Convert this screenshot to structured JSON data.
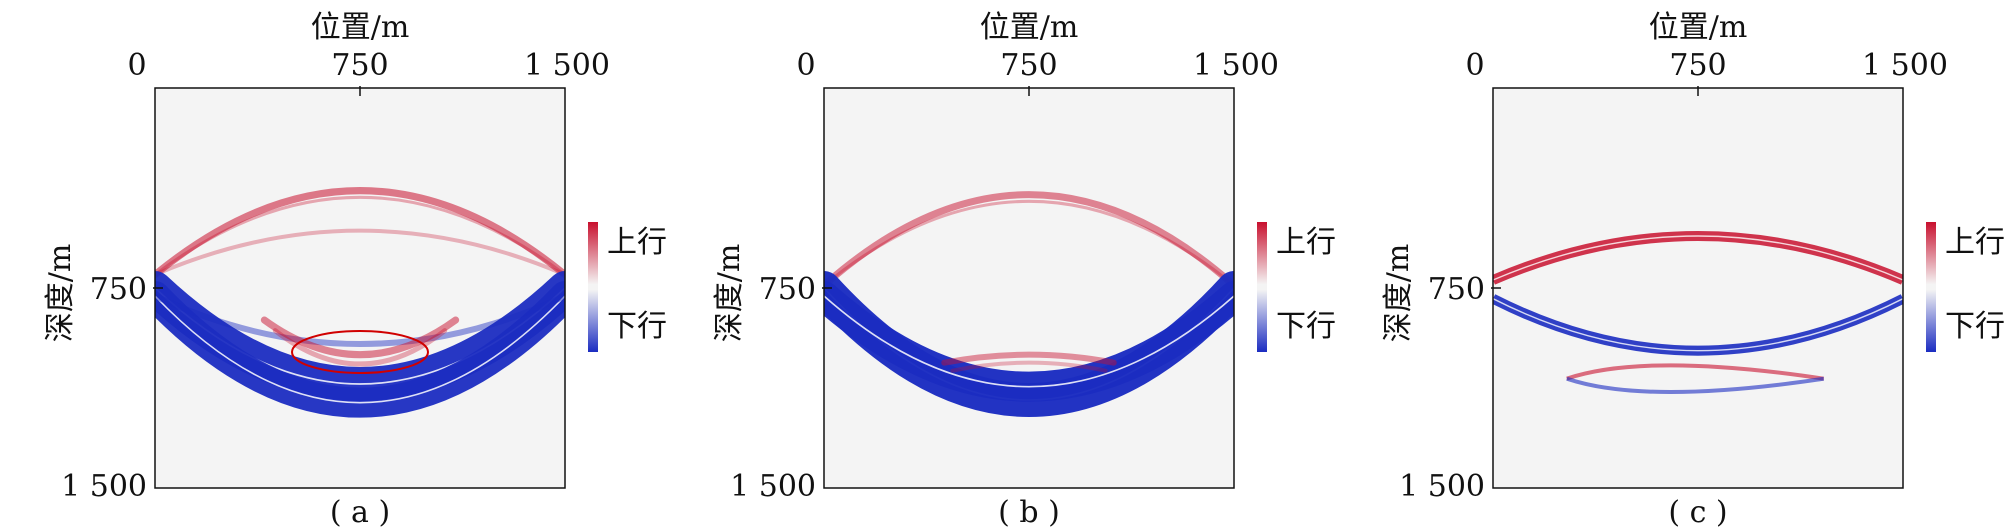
{
  "figure": {
    "panels": [
      {
        "caption": "( a )",
        "xlabel": "位置/m",
        "ylabel": "深度/m",
        "x_ticks": [
          "0",
          "750",
          "1 500"
        ],
        "y_ticks": [
          "750",
          "1 500"
        ],
        "colorbar": {
          "up_label": "上行",
          "down_label": "下行"
        },
        "highlight": "ellipse"
      },
      {
        "caption": "( b )",
        "xlabel": "位置/m",
        "ylabel": "深度/m",
        "x_ticks": [
          "0",
          "750",
          "1 500"
        ],
        "y_ticks": [
          "750",
          "1 500"
        ],
        "colorbar": {
          "up_label": "上行",
          "down_label": "下行"
        }
      },
      {
        "caption": "( c )",
        "xlabel": "位置/m",
        "ylabel": "深度/m",
        "x_ticks": [
          "0",
          "750",
          "1 500"
        ],
        "y_ticks": [
          "750",
          "1 500"
        ],
        "colorbar": {
          "up_label": "上行",
          "down_label": "下行"
        }
      }
    ],
    "colors": {
      "up": "#c8102e",
      "down": "#1b2cc1",
      "highlight": "#d00000",
      "plot_bg": "#f4f4f4"
    }
  },
  "chart_data": [
    {
      "type": "heatmap",
      "xlabel": "位置/m",
      "ylabel": "深度/m",
      "xlim": [
        0,
        1500
      ],
      "ylim": [
        0,
        1500
      ],
      "series": [
        {
          "name": "上行",
          "arcs": [
            {
              "vertex_depth": 385,
              "edge_depth": 700
            },
            {
              "vertex_depth": 535,
              "edge_depth": 700
            },
            {
              "vertex_depth": 1000,
              "edge_depth": 870
            }
          ]
        },
        {
          "name": "下行",
          "arcs": [
            {
              "vertex_depth": 1180,
              "edge_depth": 780
            },
            {
              "vertex_depth": 1110,
              "edge_depth": 750
            },
            {
              "vertex_depth": 960,
              "edge_depth": 780
            }
          ]
        }
      ]
    },
    {
      "type": "heatmap",
      "xlabel": "位置/m",
      "ylabel": "深度/m",
      "xlim": [
        0,
        1500
      ],
      "ylim": [
        0,
        1500
      ],
      "series": [
        {
          "name": "上行",
          "arcs": [
            {
              "vertex_depth": 400,
              "edge_depth": 740
            },
            {
              "vertex_depth": 1000,
              "edge_depth": 1030
            }
          ]
        },
        {
          "name": "下行",
          "arcs": [
            {
              "vertex_depth": 1170,
              "edge_depth": 750
            },
            {
              "vertex_depth": 1120,
              "edge_depth": 780
            }
          ]
        }
      ]
    },
    {
      "type": "heatmap",
      "xlabel": "位置/m",
      "ylabel": "深度/m",
      "xlim": [
        0,
        1500
      ],
      "ylim": [
        0,
        1500
      ],
      "series": [
        {
          "name": "上行",
          "arcs": [
            {
              "vertex_depth": 555,
              "edge_depth": 720
            },
            {
              "vertex_depth": 1040,
              "edge_depth": 1090
            }
          ]
        },
        {
          "name": "下行",
          "arcs": [
            {
              "vertex_depth": 985,
              "edge_depth": 790
            },
            {
              "vertex_depth": 1090,
              "edge_depth": 1090
            }
          ]
        }
      ]
    }
  ]
}
